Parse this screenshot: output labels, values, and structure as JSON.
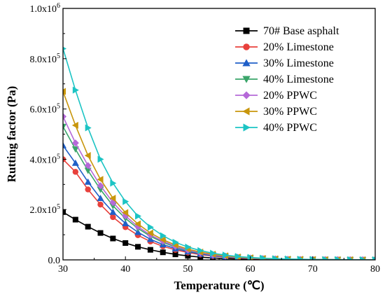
{
  "chart_data": {
    "type": "line",
    "xlabel": "Temperature (℃)",
    "ylabel": "Rutting factor (Pa)",
    "xlim": [
      30,
      80
    ],
    "ylim": [
      0,
      1000000
    ],
    "x_ticks": [
      30,
      40,
      50,
      60,
      70,
      80
    ],
    "y_tick_labels": [
      {
        "value": 0,
        "mantissa": "0.0",
        "exp": ""
      },
      {
        "value": 200000,
        "mantissa": "2.0x10",
        "exp": "5"
      },
      {
        "value": 400000,
        "mantissa": "4.0x10",
        "exp": "5"
      },
      {
        "value": 600000,
        "mantissa": "6.0x10",
        "exp": "5"
      },
      {
        "value": 800000,
        "mantissa": "8.0x10",
        "exp": "5"
      },
      {
        "value": 1000000,
        "mantissa": "1.0x10",
        "exp": "6"
      }
    ],
    "legend_position": "top-right",
    "grid": false,
    "x": [
      30,
      32,
      34,
      36,
      38,
      40,
      42,
      44,
      46,
      48,
      50,
      52,
      54,
      56,
      58,
      60,
      62,
      64,
      66,
      68,
      70,
      72,
      74,
      76,
      78,
      80
    ],
    "series": [
      {
        "name": "70# Base asphalt",
        "color": "#000000",
        "marker": "square",
        "values": [
          190000,
          160000,
          132000,
          107000,
          85000,
          67000,
          52000,
          40000,
          30000,
          22000,
          16000,
          11000,
          7500,
          5000,
          3500,
          2500,
          1800,
          1300,
          1000,
          800,
          600,
          500,
          400,
          300,
          250,
          200
        ]
      },
      {
        "name": "20% Limestone",
        "color": "#e8413c",
        "marker": "circle",
        "values": [
          400000,
          350000,
          280000,
          220000,
          170000,
          130000,
          98000,
          73000,
          54000,
          40000,
          29000,
          21000,
          15000,
          10500,
          7500,
          5300,
          3800,
          2700,
          1900,
          1400,
          1000,
          750,
          550,
          400,
          300,
          250
        ]
      },
      {
        "name": "30% Limestone",
        "color": "#1f5fc8",
        "marker": "triangle-up",
        "values": [
          455000,
          385000,
          310000,
          245000,
          190000,
          145000,
          110000,
          82000,
          61000,
          45000,
          33000,
          24000,
          17000,
          12000,
          8500,
          6000,
          4300,
          3000,
          2100,
          1500,
          1100,
          800,
          600,
          450,
          330,
          250
        ]
      },
      {
        "name": "40% Limestone",
        "color": "#3aa56a",
        "marker": "triangle-down",
        "values": [
          530000,
          440000,
          355000,
          280000,
          215000,
          165000,
          125000,
          94000,
          70000,
          51000,
          37000,
          27000,
          19500,
          14000,
          10000,
          7000,
          5000,
          3500,
          2500,
          1800,
          1300,
          950,
          700,
          500,
          380,
          280
        ]
      },
      {
        "name": "20% PPWC",
        "color": "#b569d8",
        "marker": "diamond",
        "values": [
          570000,
          465000,
          375000,
          295000,
          228000,
          175000,
          132000,
          99000,
          74000,
          54000,
          39000,
          28000,
          20000,
          14500,
          10300,
          7300,
          5200,
          3700,
          2600,
          1900,
          1350,
          1000,
          720,
          520,
          390,
          290
        ]
      },
      {
        "name": "30% PPWC",
        "color": "#c8960c",
        "marker": "triangle-left",
        "values": [
          670000,
          535000,
          415000,
          320000,
          245000,
          188000,
          143000,
          107000,
          80000,
          59000,
          43000,
          31000,
          22500,
          16000,
          11500,
          8200,
          5800,
          4100,
          2900,
          2100,
          1500,
          1100,
          800,
          580,
          430,
          320
        ]
      },
      {
        "name": "40% PPWC",
        "color": "#1cc4c4",
        "marker": "triangle-right",
        "values": [
          840000,
          675000,
          525000,
          400000,
          305000,
          232000,
          174000,
          130000,
          96000,
          70000,
          51000,
          37000,
          26500,
          19000,
          13500,
          9600,
          6800,
          4800,
          3400,
          2400,
          1700,
          1250,
          900,
          650,
          480,
          350
        ]
      }
    ]
  }
}
